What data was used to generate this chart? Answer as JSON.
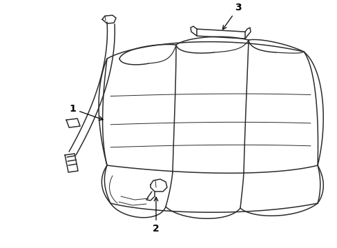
{
  "bg_color": "#ffffff",
  "line_color": "#2a2a2a",
  "lw": 1.1,
  "lw_thin": 0.7,
  "font_size": 10,
  "label_1": "1",
  "label_2": "2",
  "label_3": "3"
}
